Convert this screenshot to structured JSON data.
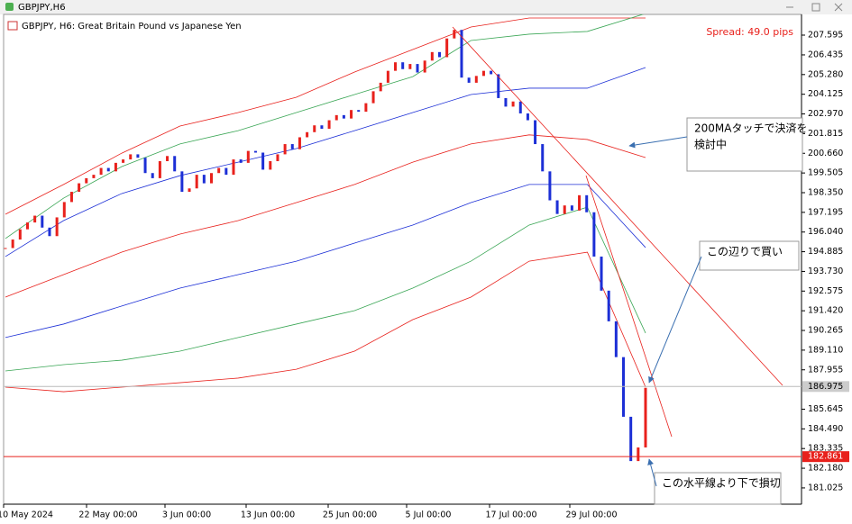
{
  "window": {
    "title": "GBPJPY,H6"
  },
  "chart_data": {
    "type": "candlestick",
    "title": "GBPJPY, H6:  Great Britain Pound vs Japanese Yen",
    "spread": "Spread: 49.0 pips",
    "colors": {
      "up": "#e8211c",
      "down": "#1c2fd6"
    },
    "closes": [
      195.1,
      195.6,
      196.2,
      196.6,
      197.0,
      196.3,
      195.8,
      196.9,
      197.8,
      198.4,
      198.9,
      199.2,
      199.4,
      199.8,
      199.6,
      200.1,
      200.3,
      200.6,
      200.4,
      199.5,
      199.2,
      200.2,
      200.5,
      199.6,
      198.4,
      198.6,
      199.4,
      198.9,
      199.5,
      199.8,
      199.4,
      200.3,
      200.1,
      200.8,
      200.7,
      199.7,
      200.2,
      200.6,
      201.2,
      200.9,
      201.6,
      201.9,
      202.3,
      202.1,
      202.6,
      202.9,
      202.7,
      203.2,
      203.1,
      203.6,
      204.3,
      204.8,
      205.5,
      206.0,
      205.6,
      205.9,
      205.4,
      206.1,
      206.6,
      206.3,
      207.4,
      207.9,
      205.1,
      204.8,
      205.2,
      205.5,
      205.3,
      203.9,
      203.4,
      203.7,
      203.0,
      202.6,
      201.2,
      199.6,
      197.9,
      197.1,
      197.6,
      197.3,
      198.2,
      197.2,
      194.6,
      192.6,
      190.8,
      188.7,
      185.2,
      182.6,
      183.4,
      186.9
    ],
    "overlays": [
      {
        "color": "#e8211c",
        "values": [
          197.08,
          198.83,
          200.67,
          202.26,
          203.05,
          203.95,
          205.43,
          206.75,
          208.07,
          208.6,
          208.6,
          208.6
        ]
      },
      {
        "color": "#3aa655",
        "values": [
          195.66,
          198.03,
          199.88,
          201.21,
          201.99,
          203.05,
          204.11,
          205.16,
          207.28,
          207.65,
          207.81,
          208.86
        ]
      },
      {
        "color": "#1c2fd6",
        "values": [
          194.6,
          196.71,
          198.3,
          199.35,
          200.14,
          200.94,
          201.99,
          203.05,
          204.11,
          204.48,
          204.48,
          205.69
        ]
      },
      {
        "color": "#e8211c",
        "values": [
          192.22,
          193.54,
          194.86,
          195.92,
          196.71,
          197.77,
          198.83,
          200.14,
          201.21,
          201.74,
          201.47,
          200.41
        ]
      },
      {
        "color": "#1c2fd6",
        "values": [
          189.85,
          190.64,
          191.7,
          192.75,
          193.54,
          194.33,
          195.39,
          196.45,
          197.77,
          198.83,
          198.83,
          195.13
        ]
      },
      {
        "color": "#3aa655",
        "values": [
          187.89,
          188.26,
          188.52,
          189.05,
          189.85,
          190.64,
          191.43,
          192.75,
          194.33,
          196.45,
          197.5,
          190.11
        ]
      },
      {
        "color": "#e8211c",
        "values": [
          186.94,
          186.67,
          186.94,
          187.2,
          187.47,
          187.99,
          189.05,
          190.9,
          192.22,
          194.33,
          194.86,
          186.94
        ]
      }
    ],
    "ylim": [
      180.07,
      208.81
    ],
    "yticks": [
      207.595,
      206.435,
      {
        "value": 205.28,
        "label": "205.280"
      },
      204.125,
      {
        "value": 202.97,
        "label": "202.970"
      },
      201.815,
      {
        "value": 200.66,
        "label": "200.660"
      },
      199.505,
      {
        "value": 198.35,
        "label": "198.350"
      },
      197.195,
      {
        "value": 196.04,
        "label": "196.040"
      },
      194.885,
      {
        "value": 193.73,
        "label": "193.730"
      },
      192.575,
      {
        "value": 191.42,
        "label": "191.420"
      },
      190.265,
      {
        "value": 189.11,
        "label": "189.110"
      },
      187.955,
      185.645,
      {
        "value": 184.49,
        "label": "184.490"
      },
      183.335,
      {
        "value": 182.18,
        "label": "182.180"
      },
      181.025
    ],
    "x_labels": [
      "10 May 2024",
      "22 May 00:00",
      "3 Jun 00:00",
      "13 Jun 00:00",
      "25 Jun 00:00",
      "5 Jul 00:00",
      "17 Jul 00:00",
      "29 Jul 00:00"
    ],
    "bid": 186.975,
    "hline": 182.861,
    "annotations": [
      [
        "200MAタッチで決済を",
        "検討中"
      ],
      [
        "この辺りで買い"
      ],
      [
        "この水平線より下で損切"
      ]
    ]
  }
}
